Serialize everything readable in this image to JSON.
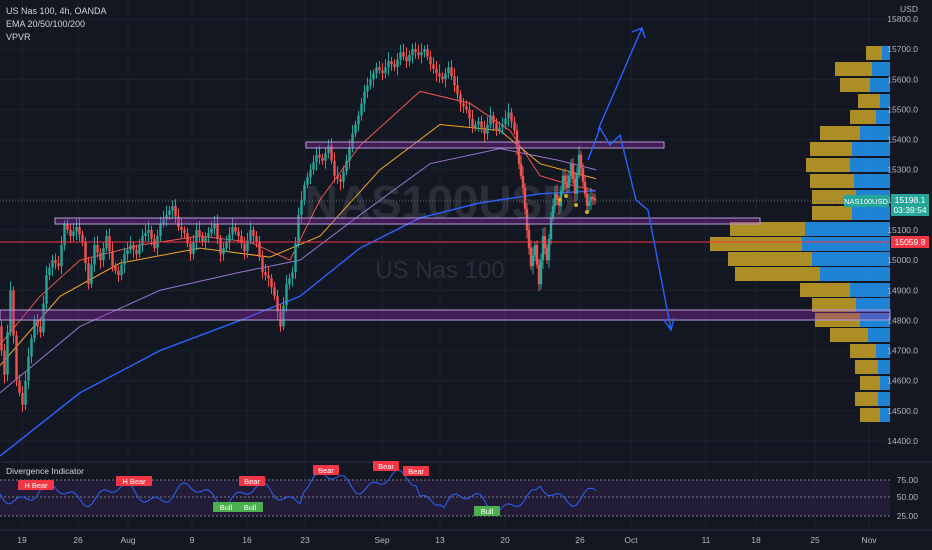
{
  "header": {
    "symbol_line": "US Nas 100, 4h, OANDA",
    "indicator_1": "EMA 20/50/100/200",
    "indicator_2": "VPVR",
    "currency": "USD"
  },
  "watermark": {
    "ticker": "NAS100USD",
    "name": "US Nas 100"
  },
  "price_axis": {
    "ticks": [
      "15800.0",
      "15700.0",
      "15600.0",
      "15500.0",
      "15400.0",
      "15300.0",
      "15200.0",
      "15100.0",
      "15000.0",
      "14900.0",
      "14800.0",
      "14700.0",
      "14600.0",
      "14500.0",
      "14400.0"
    ],
    "last_price_label": "NAS100USD",
    "last_price": "15198.1",
    "countdown": "03:39:54",
    "red_line_price": "15059.8"
  },
  "time_axis": {
    "ticks": [
      "19",
      "26",
      "Aug",
      "9",
      "16",
      "23",
      "Sep",
      "13",
      "20",
      "26",
      "Oct",
      "11",
      "18",
      "25",
      "Nov"
    ]
  },
  "oscillator": {
    "title": "Divergence Indicator",
    "ticks": [
      "75.00",
      "50.00",
      "25.00"
    ],
    "labels": [
      "H Bear",
      "H Bear",
      "Bear",
      "Bear",
      "Bear",
      "Bear",
      "Bull",
      "Bull",
      "Bull"
    ]
  },
  "colors": {
    "background": "#131722",
    "up_candle": "#26a69a",
    "down_candle": "#ef5350",
    "zone": "#9c27b0",
    "projection": "#2962ff",
    "volume_up": "#2196f3",
    "volume_down": "#c9a227",
    "red_line": "#f23645",
    "oscillator_line": "#2962ff"
  },
  "chart_data": {
    "type": "candlestick",
    "title": "US Nas 100, 4h, OANDA",
    "ylim": [
      14380,
      15830
    ],
    "x_labels": [
      "19",
      "26",
      "Aug",
      "9",
      "16",
      "23",
      "Sep",
      "13",
      "20",
      "26",
      "Oct",
      "11",
      "18",
      "25",
      "Nov"
    ],
    "series": [
      {
        "name": "EMA 20/50/100/200",
        "approx_path": [
          [
            0,
            14700
          ],
          [
            20,
            14950
          ],
          [
            40,
            15110
          ],
          [
            60,
            15080
          ],
          [
            70,
            15000
          ],
          [
            80,
            15100
          ],
          [
            90,
            15450
          ],
          [
            100,
            15550
          ],
          [
            110,
            15500
          ],
          [
            125,
            15420
          ],
          [
            135,
            15250
          ],
          [
            145,
            15280
          ],
          [
            150,
            15240
          ]
        ]
      },
      {
        "name": "VPVR",
        "values": [
          30,
          35,
          40,
          30,
          25,
          50,
          55,
          90,
          95,
          110,
          85,
          82,
          80,
          50,
          40,
          30,
          25,
          20,
          15
        ]
      }
    ],
    "support_resistance_zones": [
      [
        15380,
        15395
      ],
      [
        15120,
        15140
      ],
      [
        14800,
        14840
      ]
    ],
    "projection_path": [
      [
        15240,
        "Sep 26"
      ],
      [
        15400,
        "Sep 27"
      ],
      [
        15330,
        "Sep 28"
      ],
      [
        15390,
        "Sep 29"
      ],
      [
        15180,
        "Oct 1"
      ],
      [
        14790,
        "Oct 7"
      ]
    ],
    "projection_up": [
      [
        15300,
        "Sep 26"
      ],
      [
        15780,
        "Oct 3"
      ]
    ]
  }
}
